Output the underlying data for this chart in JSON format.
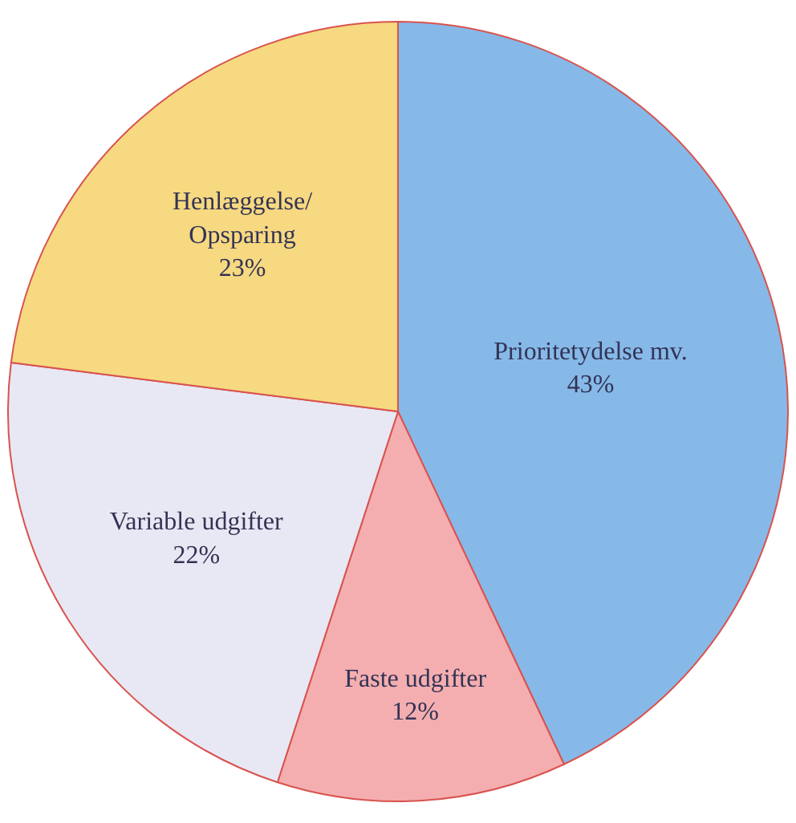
{
  "chart_data": {
    "type": "pie",
    "categories": [
      "Prioritetydelse mv.",
      "Faste udgifter",
      "Variable udgifter",
      "Henlæggelse/\nOpsparing"
    ],
    "values": [
      43,
      12,
      22,
      23
    ],
    "value_labels": [
      "43%",
      "12%",
      "22%",
      "23%"
    ],
    "colors": [
      "#86b9e8",
      "#f4aeb0",
      "#e8e8f4",
      "#f6d980"
    ]
  }
}
